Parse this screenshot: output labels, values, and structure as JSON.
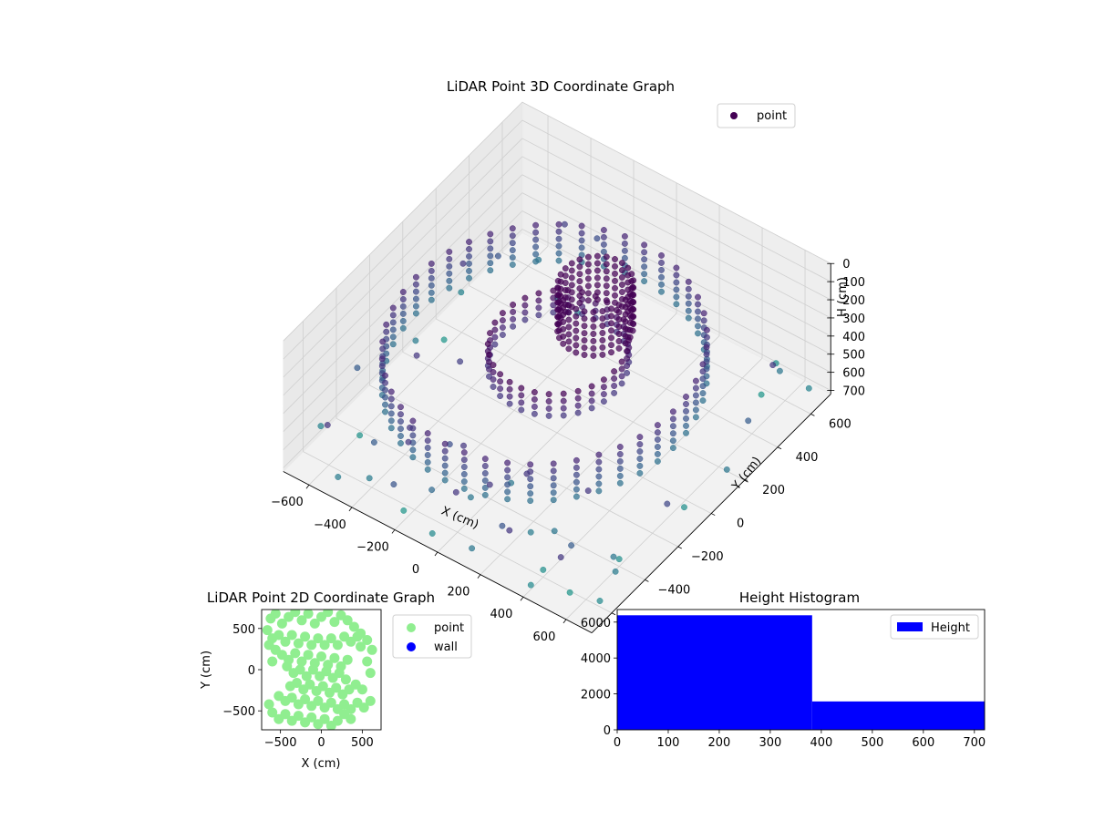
{
  "chart_data": [
    {
      "type": "scatter",
      "projection": "3d",
      "title": "LiDAR Point 3D Coordinate Graph",
      "xlabel": "X (cm)",
      "ylabel": "Y (cm)",
      "zlabel": "H (cm)",
      "xlim": [
        -720,
        720
      ],
      "ylim": [
        -720,
        720
      ],
      "zlim": [
        0,
        720
      ],
      "z_inverted": true,
      "xticks": [
        "−600",
        "−400",
        "−200",
        "0",
        "200",
        "400",
        "600"
      ],
      "yticks": [
        "−600",
        "−400",
        "−200",
        "0",
        "200",
        "400",
        "600"
      ],
      "zticks": [
        "0",
        "100",
        "200",
        "300",
        "400",
        "500",
        "600",
        "700"
      ],
      "grid": true,
      "legend": {
        "position": "top-right",
        "entries": [
          {
            "label": "point",
            "color": "#440154"
          }
        ]
      },
      "colormap": "viridis",
      "series": [
        {
          "name": "point",
          "rings": [
            {
              "cx": -120,
              "cy": 80,
              "r": 600,
              "h_values": [
                380,
                420,
                460,
                500,
                540,
                580
              ],
              "count": 44
            },
            {
              "cx": -40,
              "cy": 60,
              "r": 260,
              "h_values": [
                300,
                340,
                380,
                420
              ],
              "count": 30
            },
            {
              "cx": 40,
              "cy": 180,
              "r": 140,
              "h_values": [
                40,
                80,
                120,
                160,
                200,
                240,
                280
              ],
              "count": 26
            }
          ],
          "scattered_points": [
            [
              -700,
              -520,
              640
            ],
            [
              -640,
              260,
              420
            ],
            [
              -560,
              -660,
              420
            ],
            [
              -480,
              -700,
              620
            ],
            [
              -420,
              -560,
              520
            ],
            [
              -380,
              -640,
              620
            ],
            [
              -300,
              -500,
              420
            ],
            [
              -260,
              -560,
              420
            ],
            [
              -220,
              -700,
              500
            ],
            [
              -160,
              -440,
              480
            ],
            [
              -120,
              -600,
              560
            ],
            [
              -80,
              -460,
              420
            ],
            [
              -40,
              -700,
              660
            ],
            [
              0,
              -520,
              600
            ],
            [
              40,
              -660,
              420
            ],
            [
              80,
              -380,
              600
            ],
            [
              120,
              -560,
              420
            ],
            [
              160,
              -720,
              600
            ],
            [
              200,
              -440,
              420
            ],
            [
              240,
              -640,
              500
            ],
            [
              280,
              -520,
              620
            ],
            [
              320,
              -700,
              420
            ],
            [
              360,
              -480,
              600
            ],
            [
              400,
              -600,
              680
            ],
            [
              440,
              -380,
              420
            ],
            [
              500,
              -560,
              520
            ],
            [
              560,
              -700,
              420
            ],
            [
              620,
              -460,
              600
            ],
            [
              680,
              -620,
              660
            ],
            [
              -680,
              300,
              640
            ],
            [
              -600,
              420,
              500
            ],
            [
              -520,
              560,
              600
            ],
            [
              -460,
              640,
              440
            ],
            [
              -400,
              520,
              700
            ],
            [
              -340,
              680,
              480
            ],
            [
              -260,
              460,
              640
            ],
            [
              620,
              500,
              420
            ],
            [
              660,
              300,
              520
            ],
            [
              700,
              120,
              600
            ],
            [
              640,
              -60,
              680
            ],
            [
              700,
              -240,
              460
            ],
            [
              560,
              620,
              600
            ],
            [
              480,
              700,
              680
            ],
            [
              680,
              640,
              640
            ],
            [
              520,
              560,
              700
            ],
            [
              -700,
              -300,
              520
            ],
            [
              -660,
              0,
              620
            ],
            [
              -620,
              120,
              700
            ],
            [
              600,
              -400,
              680
            ],
            [
              660,
              -500,
              620
            ],
            [
              540,
              -620,
              700
            ],
            [
              420,
              -700,
              660
            ],
            [
              -220,
              -640,
              700
            ],
            [
              -580,
              -440,
              690
            ],
            [
              -500,
              -200,
              420
            ],
            [
              -360,
              -120,
              440
            ]
          ]
        }
      ]
    },
    {
      "type": "scatter",
      "title": "LiDAR Point 2D Coordinate Graph",
      "xlabel": "X (cm)",
      "ylabel": "Y (cm)",
      "xlim": [
        -730,
        730
      ],
      "ylim": [
        -730,
        730
      ],
      "xticks": [
        "−500",
        "0",
        "500"
      ],
      "yticks": [
        "−500",
        "0",
        "500"
      ],
      "grid": false,
      "legend": {
        "position": "outside-right",
        "entries": [
          {
            "label": "point",
            "color": "#90ee90"
          },
          {
            "label": "wall",
            "color": "#0000ff"
          }
        ]
      },
      "series": [
        {
          "name": "point",
          "color": "#90ee90",
          "points": [
            [
              -620,
              620
            ],
            [
              -560,
              680
            ],
            [
              -480,
              560
            ],
            [
              -400,
              640
            ],
            [
              -320,
              700
            ],
            [
              -240,
              600
            ],
            [
              -160,
              680
            ],
            [
              -80,
              560
            ],
            [
              0,
              640
            ],
            [
              80,
              700
            ],
            [
              160,
              580
            ],
            [
              240,
              660
            ],
            [
              320,
              600
            ],
            [
              400,
              520
            ],
            [
              480,
              440
            ],
            [
              560,
              360
            ],
            [
              620,
              240
            ],
            [
              -660,
              480
            ],
            [
              -600,
              380
            ],
            [
              -520,
              420
            ],
            [
              -440,
              340
            ],
            [
              -360,
              420
            ],
            [
              -280,
              320
            ],
            [
              -200,
              400
            ],
            [
              -120,
              300
            ],
            [
              -40,
              380
            ],
            [
              40,
              300
            ],
            [
              120,
              380
            ],
            [
              200,
              300
            ],
            [
              280,
              400
            ],
            [
              360,
              340
            ],
            [
              440,
              400
            ],
            [
              -560,
              240
            ],
            [
              -480,
              180
            ],
            [
              -400,
              120
            ],
            [
              -320,
              200
            ],
            [
              -240,
              100
            ],
            [
              -160,
              180
            ],
            [
              -80,
              80
            ],
            [
              0,
              160
            ],
            [
              80,
              60
            ],
            [
              160,
              140
            ],
            [
              240,
              40
            ],
            [
              320,
              120
            ],
            [
              -420,
              40
            ],
            [
              -340,
              -40
            ],
            [
              -260,
              0
            ],
            [
              -180,
              -80
            ],
            [
              -100,
              0
            ],
            [
              -20,
              -80
            ],
            [
              60,
              -20
            ],
            [
              140,
              -100
            ],
            [
              220,
              -40
            ],
            [
              300,
              -120
            ],
            [
              -380,
              -200
            ],
            [
              -300,
              -160
            ],
            [
              -220,
              -240
            ],
            [
              -140,
              -180
            ],
            [
              -60,
              -260
            ],
            [
              20,
              -200
            ],
            [
              100,
              -280
            ],
            [
              180,
              -220
            ],
            [
              260,
              -300
            ],
            [
              340,
              -240
            ],
            [
              420,
              -180
            ],
            [
              500,
              -240
            ],
            [
              -520,
              -320
            ],
            [
              -440,
              -380
            ],
            [
              -360,
              -340
            ],
            [
              -280,
              -420
            ],
            [
              -200,
              -360
            ],
            [
              -120,
              -440
            ],
            [
              -40,
              -380
            ],
            [
              40,
              -460
            ],
            [
              120,
              -400
            ],
            [
              200,
              -480
            ],
            [
              280,
              -420
            ],
            [
              360,
              -480
            ],
            [
              440,
              -400
            ],
            [
              520,
              -460
            ],
            [
              600,
              -380
            ],
            [
              -600,
              -520
            ],
            [
              -520,
              -600
            ],
            [
              -440,
              -540
            ],
            [
              -360,
              -620
            ],
            [
              -280,
              -560
            ],
            [
              -200,
              -640
            ],
            [
              -120,
              -580
            ],
            [
              -40,
              -660
            ],
            [
              40,
              -600
            ],
            [
              120,
              -680
            ],
            [
              200,
              -620
            ],
            [
              280,
              -540
            ],
            [
              360,
              -600
            ],
            [
              -640,
              -420
            ],
            [
              560,
              100
            ],
            [
              600,
              -40
            ],
            [
              480,
              280
            ],
            [
              -600,
              100
            ],
            [
              -640,
              300
            ]
          ]
        },
        {
          "name": "wall",
          "color": "#0000ff",
          "points": []
        }
      ]
    },
    {
      "type": "bar",
      "subtype": "histogram",
      "title": "Height Histogram",
      "xlim": [
        0,
        720
      ],
      "ylim": [
        0,
        6700
      ],
      "xticks": [
        "0",
        "100",
        "200",
        "300",
        "400",
        "500",
        "600",
        "700"
      ],
      "yticks": [
        "0",
        "2000",
        "4000",
        "6000"
      ],
      "legend": {
        "position": "top-right",
        "entries": [
          {
            "label": "Height",
            "color": "#0000ff"
          }
        ]
      },
      "bins": [
        {
          "x0": 0,
          "x1": 382,
          "value": 6380
        },
        {
          "x0": 382,
          "x1": 720,
          "value": 1580
        }
      ],
      "color": "#0000ff"
    }
  ]
}
